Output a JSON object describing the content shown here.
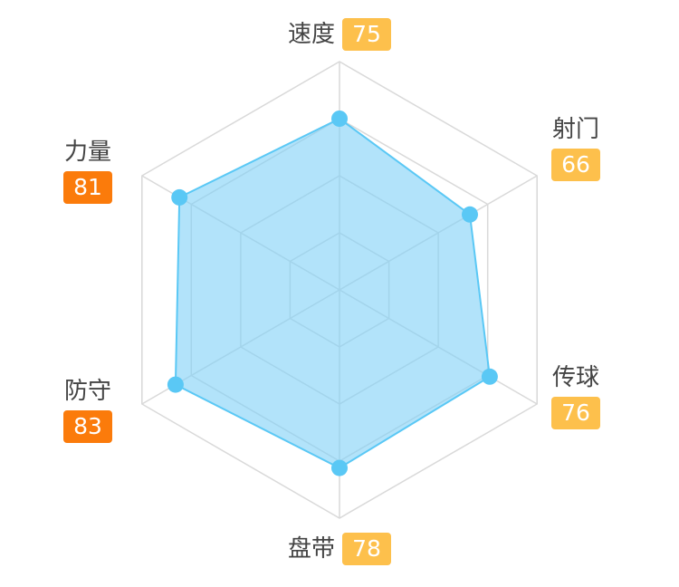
{
  "chart_data": {
    "type": "radar",
    "max": 100,
    "levels": 4,
    "axes": [
      {
        "name": "速度",
        "value": 75
      },
      {
        "name": "射门",
        "value": 66
      },
      {
        "name": "传球",
        "value": 76
      },
      {
        "name": "盘带",
        "value": 78
      },
      {
        "name": "防守",
        "value": 83
      },
      {
        "name": "力量",
        "value": 81
      }
    ],
    "colors": {
      "fill": "#7fd1f7",
      "stroke": "#5ac8f5",
      "point": "#5ac8f5",
      "grid": "#d9d9d9",
      "badge_high": "#fb7b0b",
      "badge_normal": "#fdc04c"
    },
    "badge_threshold": 80
  }
}
